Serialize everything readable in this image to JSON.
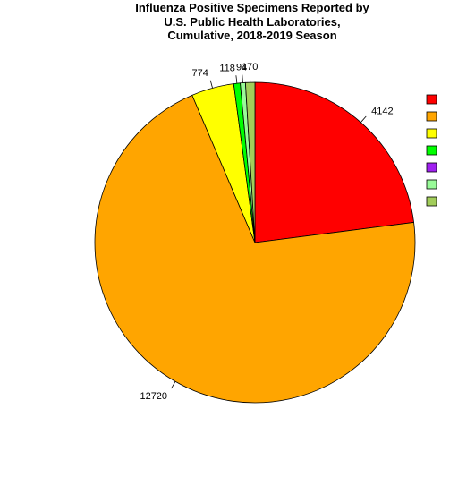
{
  "chart_data": {
    "type": "pie",
    "title": [
      "Influenza Positive Specimens Reported by",
      "U.S. Public Health Laboratories,",
      "Cumulative, 2018-2019 Season"
    ],
    "start_angle_deg": 90,
    "direction": "clockwise",
    "legend_position": "right",
    "slices": [
      {
        "value": 4142,
        "label": "4142",
        "color": "#FF0000"
      },
      {
        "value": 12720,
        "label": "12720",
        "color": "#FFA500"
      },
      {
        "value": 774,
        "label": "774",
        "color": "#FFFF00"
      },
      {
        "value": 118,
        "label": "118",
        "color": "#00FF00"
      },
      {
        "value": 0,
        "label": "",
        "color": "#A020F0"
      },
      {
        "value": 94,
        "label": "94",
        "color": "#98FB98"
      },
      {
        "value": 170,
        "label": "170",
        "color": "#A2CD5A"
      }
    ]
  }
}
